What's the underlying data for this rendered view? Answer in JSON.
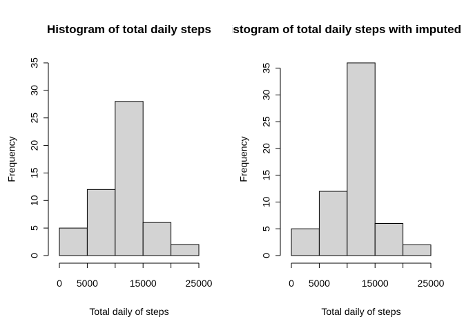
{
  "chart_data": [
    {
      "type": "bar",
      "title": "Histogram of total daily steps",
      "xlabel": "Total daily of steps",
      "ylabel": "Frequency",
      "bins": [
        [
          0,
          5000
        ],
        [
          5000,
          10000
        ],
        [
          10000,
          15000
        ],
        [
          15000,
          20000
        ],
        [
          20000,
          25000
        ]
      ],
      "values": [
        5,
        12,
        28,
        6,
        2
      ],
      "xticks": [
        0,
        5000,
        15000,
        25000
      ],
      "xtick_labels": [
        "0",
        "5000",
        "15000",
        "25000"
      ],
      "yticks": [
        0,
        5,
        10,
        15,
        20,
        25,
        30,
        35
      ],
      "ytick_labels": [
        "0",
        "5",
        "10",
        "15",
        "20",
        "25",
        "30",
        "35"
      ],
      "xlim": [
        0,
        25000
      ],
      "ylim": [
        0,
        35
      ],
      "bar_color": "#d3d3d3",
      "grid": false
    },
    {
      "type": "bar",
      "title": "Histogram of total daily steps with imputed values",
      "xlabel": "Total daily of steps",
      "ylabel": "Frequency",
      "bins": [
        [
          0,
          5000
        ],
        [
          5000,
          10000
        ],
        [
          10000,
          15000
        ],
        [
          15000,
          20000
        ],
        [
          20000,
          25000
        ]
      ],
      "values": [
        5,
        12,
        36,
        6,
        2
      ],
      "xticks": [
        0,
        5000,
        15000,
        25000
      ],
      "xtick_labels": [
        "0",
        "5000",
        "15000",
        "25000"
      ],
      "yticks": [
        0,
        5,
        10,
        15,
        20,
        25,
        30,
        35
      ],
      "ytick_labels": [
        "0",
        "5",
        "10",
        "15",
        "20",
        "25",
        "30",
        "35"
      ],
      "xlim": [
        0,
        25000
      ],
      "ylim": [
        0,
        36
      ],
      "bar_color": "#d3d3d3",
      "grid": false
    }
  ]
}
